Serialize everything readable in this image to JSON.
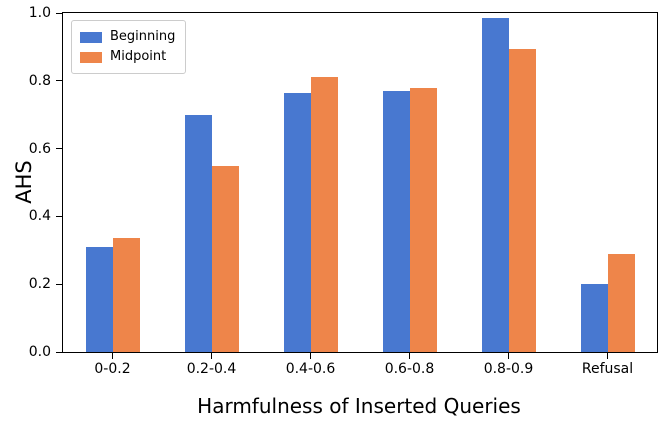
{
  "chart_data": {
    "type": "bar",
    "title": "",
    "xlabel": "Harmfulness of Inserted Queries",
    "ylabel": "AHS",
    "categories": [
      "0-0.2",
      "0.2-0.4",
      "0.4-0.6",
      "0.6-0.8",
      "0.8-0.9",
      "Refusal"
    ],
    "series": [
      {
        "name": "Beginning",
        "color": "#4878d0",
        "values": [
          0.31,
          0.7,
          0.765,
          0.77,
          0.985,
          0.2
        ]
      },
      {
        "name": "Midpoint",
        "color": "#ee854a",
        "values": [
          0.335,
          0.55,
          0.81,
          0.78,
          0.895,
          0.29
        ]
      }
    ],
    "ylim": [
      0.0,
      1.0
    ],
    "yticks": [
      0.0,
      0.2,
      0.4,
      0.6,
      0.8,
      1.0
    ],
    "ytick_labels": [
      "0.0",
      "0.2",
      "0.4",
      "0.6",
      "0.8",
      "1.0"
    ],
    "legend_position": "upper left",
    "grid": false
  }
}
